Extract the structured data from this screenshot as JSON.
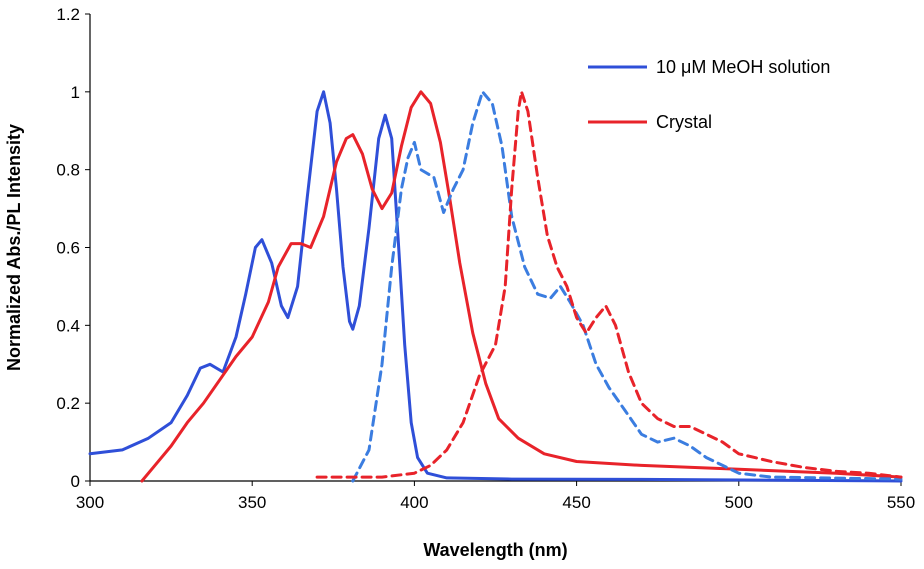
{
  "chart_data": {
    "type": "line",
    "title": "",
    "xlabel": "Wavelength (nm)",
    "ylabel": "Normalized Abs./PL Intensity",
    "xlim": [
      300,
      550
    ],
    "ylim": [
      0,
      1.2
    ],
    "xticks": [
      300,
      350,
      400,
      450,
      500,
      550
    ],
    "yticks": [
      0,
      0.2,
      0.4,
      0.6,
      0.8,
      1,
      1.2
    ],
    "xtick_labels": [
      "300",
      "350",
      "400",
      "450",
      "500",
      "550"
    ],
    "ytick_labels": [
      "0",
      "0.2",
      "0.4",
      "0.6",
      "0.8",
      "1",
      "1.2"
    ],
    "grid": false,
    "legend_position": "top-right",
    "legend": [
      {
        "label": "10 μM MeOH solution",
        "color": "#2F4FD8"
      },
      {
        "label": "Crystal",
        "color": "#E8232A"
      }
    ],
    "series": [
      {
        "name": "10 μM MeOH solution",
        "kind": "absorption",
        "style": "solid",
        "color": "#2F4FD8",
        "points": [
          [
            300,
            0.07
          ],
          [
            310,
            0.08
          ],
          [
            318,
            0.11
          ],
          [
            325,
            0.15
          ],
          [
            330,
            0.22
          ],
          [
            334,
            0.29
          ],
          [
            337,
            0.3
          ],
          [
            341,
            0.28
          ],
          [
            345,
            0.37
          ],
          [
            348,
            0.48
          ],
          [
            351,
            0.6
          ],
          [
            353,
            0.62
          ],
          [
            356,
            0.56
          ],
          [
            359,
            0.45
          ],
          [
            361,
            0.42
          ],
          [
            364,
            0.5
          ],
          [
            367,
            0.73
          ],
          [
            370,
            0.95
          ],
          [
            372,
            1.0
          ],
          [
            374,
            0.92
          ],
          [
            376,
            0.75
          ],
          [
            378,
            0.55
          ],
          [
            380,
            0.41
          ],
          [
            381,
            0.39
          ],
          [
            383,
            0.45
          ],
          [
            386,
            0.65
          ],
          [
            389,
            0.88
          ],
          [
            391,
            0.94
          ],
          [
            393,
            0.88
          ],
          [
            395,
            0.62
          ],
          [
            397,
            0.35
          ],
          [
            399,
            0.15
          ],
          [
            401,
            0.06
          ],
          [
            404,
            0.02
          ],
          [
            410,
            0.008
          ],
          [
            430,
            0.005
          ],
          [
            470,
            0.004
          ],
          [
            550,
            0.0
          ]
        ]
      },
      {
        "name": "Crystal",
        "kind": "absorption",
        "style": "solid",
        "color": "#E8232A",
        "points": [
          [
            316,
            0.0
          ],
          [
            320,
            0.04
          ],
          [
            325,
            0.09
          ],
          [
            330,
            0.15
          ],
          [
            335,
            0.2
          ],
          [
            340,
            0.26
          ],
          [
            345,
            0.32
          ],
          [
            350,
            0.37
          ],
          [
            355,
            0.46
          ],
          [
            358,
            0.55
          ],
          [
            362,
            0.61
          ],
          [
            365,
            0.61
          ],
          [
            368,
            0.6
          ],
          [
            372,
            0.68
          ],
          [
            376,
            0.82
          ],
          [
            379,
            0.88
          ],
          [
            381,
            0.89
          ],
          [
            384,
            0.84
          ],
          [
            387,
            0.75
          ],
          [
            390,
            0.7
          ],
          [
            393,
            0.74
          ],
          [
            396,
            0.86
          ],
          [
            399,
            0.96
          ],
          [
            402,
            1.0
          ],
          [
            405,
            0.97
          ],
          [
            408,
            0.87
          ],
          [
            411,
            0.72
          ],
          [
            414,
            0.56
          ],
          [
            418,
            0.38
          ],
          [
            422,
            0.25
          ],
          [
            426,
            0.16
          ],
          [
            432,
            0.11
          ],
          [
            440,
            0.07
          ],
          [
            450,
            0.05
          ],
          [
            470,
            0.04
          ],
          [
            500,
            0.03
          ],
          [
            530,
            0.02
          ],
          [
            550,
            0.01
          ]
        ]
      },
      {
        "name": "",
        "kind": "photoluminescence",
        "style": "dashed",
        "color": "#3B7DE0",
        "points": [
          [
            381,
            0.0
          ],
          [
            386,
            0.08
          ],
          [
            390,
            0.3
          ],
          [
            393,
            0.55
          ],
          [
            396,
            0.75
          ],
          [
            398,
            0.83
          ],
          [
            400,
            0.87
          ],
          [
            402,
            0.8
          ],
          [
            406,
            0.78
          ],
          [
            409,
            0.69
          ],
          [
            412,
            0.75
          ],
          [
            415,
            0.8
          ],
          [
            418,
            0.92
          ],
          [
            421,
            1.0
          ],
          [
            424,
            0.97
          ],
          [
            427,
            0.86
          ],
          [
            430,
            0.68
          ],
          [
            434,
            0.55
          ],
          [
            438,
            0.48
          ],
          [
            442,
            0.47
          ],
          [
            445,
            0.5
          ],
          [
            448,
            0.46
          ],
          [
            452,
            0.4
          ],
          [
            456,
            0.3
          ],
          [
            460,
            0.24
          ],
          [
            465,
            0.18
          ],
          [
            470,
            0.12
          ],
          [
            475,
            0.1
          ],
          [
            480,
            0.11
          ],
          [
            485,
            0.09
          ],
          [
            490,
            0.06
          ],
          [
            495,
            0.04
          ],
          [
            500,
            0.02
          ],
          [
            510,
            0.01
          ],
          [
            550,
            0.005
          ]
        ]
      },
      {
        "name": "",
        "kind": "photoluminescence",
        "style": "dashed",
        "color": "#E8232A",
        "points": [
          [
            370,
            0.01
          ],
          [
            390,
            0.01
          ],
          [
            400,
            0.02
          ],
          [
            405,
            0.04
          ],
          [
            410,
            0.08
          ],
          [
            415,
            0.15
          ],
          [
            420,
            0.27
          ],
          [
            425,
            0.35
          ],
          [
            428,
            0.5
          ],
          [
            430,
            0.75
          ],
          [
            432,
            0.95
          ],
          [
            433,
            1.0
          ],
          [
            435,
            0.95
          ],
          [
            438,
            0.78
          ],
          [
            441,
            0.63
          ],
          [
            444,
            0.55
          ],
          [
            447,
            0.5
          ],
          [
            450,
            0.42
          ],
          [
            453,
            0.38
          ],
          [
            456,
            0.42
          ],
          [
            459,
            0.45
          ],
          [
            462,
            0.4
          ],
          [
            466,
            0.28
          ],
          [
            470,
            0.2
          ],
          [
            475,
            0.16
          ],
          [
            480,
            0.14
          ],
          [
            485,
            0.14
          ],
          [
            490,
            0.12
          ],
          [
            495,
            0.1
          ],
          [
            500,
            0.07
          ],
          [
            505,
            0.06
          ],
          [
            510,
            0.05
          ],
          [
            520,
            0.035
          ],
          [
            530,
            0.025
          ],
          [
            540,
            0.02
          ],
          [
            550,
            0.01
          ]
        ]
      }
    ]
  }
}
